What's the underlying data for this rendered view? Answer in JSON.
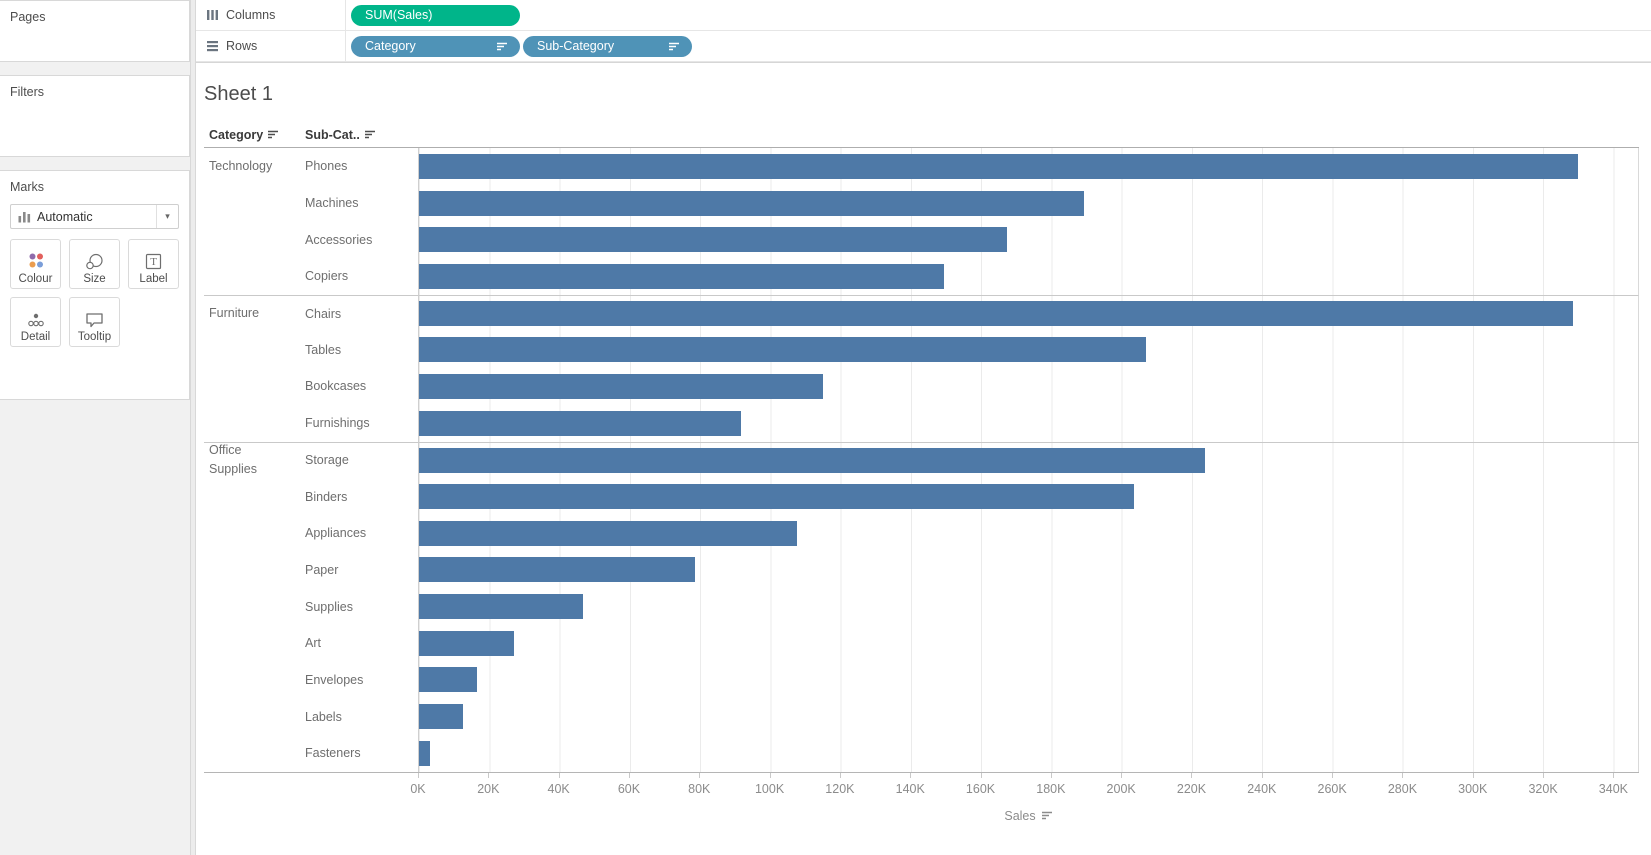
{
  "shelves": {
    "columns": {
      "label": "Columns",
      "pills": [
        {
          "label": "SUM(Sales)",
          "type": "measure",
          "color": "#00b58a"
        }
      ]
    },
    "rows": {
      "label": "Rows",
      "pills": [
        {
          "label": "Category",
          "type": "dimension",
          "color": "#4f93b7"
        },
        {
          "label": "Sub-Category",
          "type": "dimension",
          "color": "#4f93b7"
        }
      ]
    }
  },
  "sidebar": {
    "pages_label": "Pages",
    "filters_label": "Filters",
    "marks": {
      "title": "Marks",
      "mark_type": "Automatic",
      "buttons": [
        {
          "label": "Colour"
        },
        {
          "label": "Size"
        },
        {
          "label": "Label"
        },
        {
          "label": "Detail"
        },
        {
          "label": "Tooltip"
        }
      ],
      "colour_dot_colors": [
        "#8f6bab",
        "#e2605d",
        "#eb9d4f",
        "#7b9ed9"
      ]
    }
  },
  "sheet": {
    "title": "Sheet 1"
  },
  "chart_data": {
    "type": "bar",
    "title": "Sheet 1",
    "col_headers": [
      "Category",
      "Sub-Cat.."
    ],
    "xlabel": "Sales",
    "bar_color": "#4e79a7",
    "x_max": 347000,
    "tick_step": 20000,
    "x_ticks": [
      "0K",
      "20K",
      "40K",
      "60K",
      "80K",
      "100K",
      "120K",
      "140K",
      "160K",
      "180K",
      "200K",
      "220K",
      "240K",
      "260K",
      "280K",
      "300K",
      "320K",
      "340K"
    ],
    "grid": true,
    "groups": [
      {
        "category": "Technology",
        "items": [
          {
            "sub": "Phones",
            "value": 330007
          },
          {
            "sub": "Machines",
            "value": 189239
          },
          {
            "sub": "Accessories",
            "value": 167380
          },
          {
            "sub": "Copiers",
            "value": 149528
          }
        ]
      },
      {
        "category": "Furniture",
        "items": [
          {
            "sub": "Chairs",
            "value": 328449
          },
          {
            "sub": "Tables",
            "value": 206966
          },
          {
            "sub": "Bookcases",
            "value": 114880
          },
          {
            "sub": "Furnishings",
            "value": 91705
          }
        ]
      },
      {
        "category": "Office Supplies",
        "items": [
          {
            "sub": "Storage",
            "value": 223844
          },
          {
            "sub": "Binders",
            "value": 203413
          },
          {
            "sub": "Appliances",
            "value": 107532
          },
          {
            "sub": "Paper",
            "value": 78479
          },
          {
            "sub": "Supplies",
            "value": 46674
          },
          {
            "sub": "Art",
            "value": 27119
          },
          {
            "sub": "Envelopes",
            "value": 16476
          },
          {
            "sub": "Labels",
            "value": 12486
          },
          {
            "sub": "Fasteners",
            "value": 3024
          }
        ]
      }
    ]
  }
}
